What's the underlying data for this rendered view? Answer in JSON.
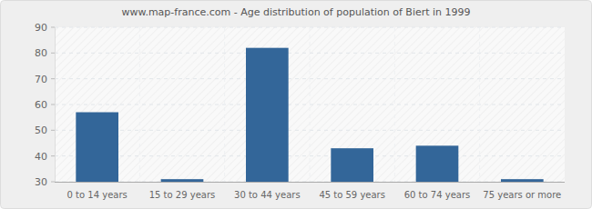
{
  "chart_data": {
    "type": "bar",
    "title": "www.map-france.com - Age distribution of population of Biert in 1999",
    "categories": [
      "0 to 14 years",
      "15 to 29 years",
      "30 to 44 years",
      "45 to 59 years",
      "60 to 74 years",
      "75 years or more"
    ],
    "values": [
      57,
      31,
      82,
      43,
      44,
      31
    ],
    "color": "#336699",
    "ylim": [
      30,
      90
    ],
    "yticks": [
      30,
      40,
      50,
      60,
      70,
      80,
      90
    ],
    "grid": true
  }
}
